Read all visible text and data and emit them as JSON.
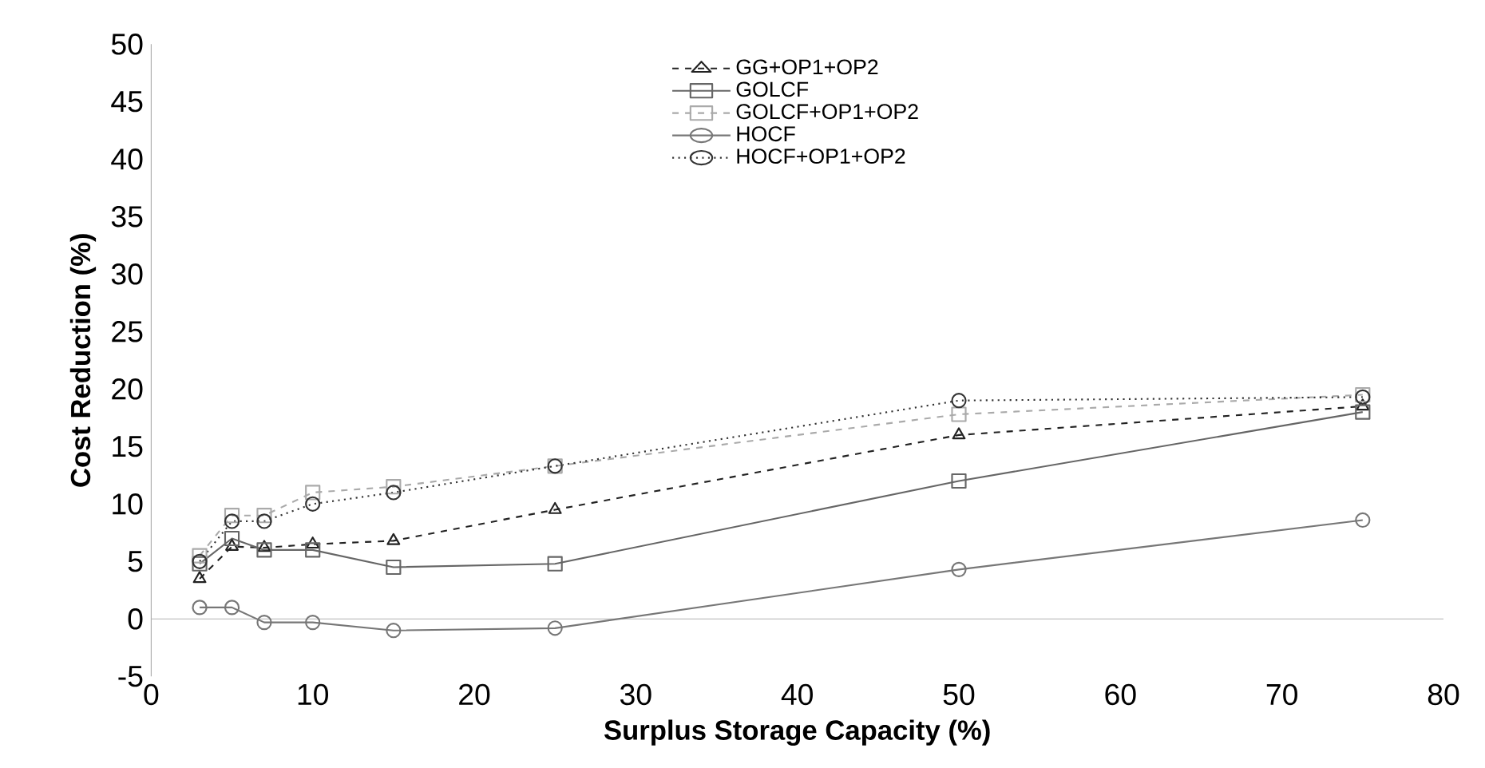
{
  "chart_data": {
    "type": "line",
    "xlabel": "Surplus Storage Capacity (%)",
    "ylabel": "Cost Reduction (%)",
    "x": [
      3,
      5,
      7,
      10,
      15,
      25,
      50,
      75
    ],
    "xlim": [
      0,
      80
    ],
    "xticks": [
      0,
      10,
      20,
      30,
      40,
      50,
      60,
      70,
      80
    ],
    "ylim": [
      -5,
      50
    ],
    "yticks": [
      -5,
      0,
      5,
      10,
      15,
      20,
      25,
      30,
      35,
      40,
      45,
      50
    ],
    "grid": false,
    "legend": "top",
    "series": [
      {
        "name": "GG+OP1+OP2",
        "color": "#222222",
        "marker": "triangle",
        "line_style": "dashed",
        "values": [
          3.5,
          6.3,
          6.2,
          6.5,
          6.8,
          9.5,
          16,
          18.5
        ]
      },
      {
        "name": "GOLCF",
        "color": "#666666",
        "marker": "square",
        "line_style": "solid",
        "values": [
          4.8,
          7,
          6,
          6,
          4.5,
          4.8,
          12,
          18
        ]
      },
      {
        "name": "GOLCF+OP1+OP2",
        "color": "#aaaaaa",
        "marker": "square",
        "line_style": "dashed",
        "values": [
          5.5,
          9,
          9,
          11,
          11.5,
          13.3,
          17.8,
          19.5
        ]
      },
      {
        "name": "HOCF",
        "color": "#777777",
        "marker": "circle",
        "line_style": "solid",
        "values": [
          1,
          1,
          -0.3,
          -0.3,
          -1,
          -0.8,
          4.3,
          8.6
        ]
      },
      {
        "name": "HOCF+OP1+OP2",
        "color": "#333333",
        "marker": "circle",
        "line_style": "dotted",
        "values": [
          5,
          8.5,
          8.5,
          10,
          11,
          13.3,
          19,
          19.3
        ]
      }
    ]
  }
}
